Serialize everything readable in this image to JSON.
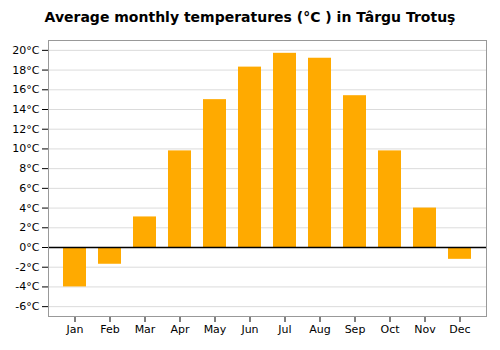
{
  "chart_data": {
    "type": "bar",
    "title": "Average monthly temperatures (°C ) in Târgu Trotuş",
    "categories": [
      "Jan",
      "Feb",
      "Mar",
      "Apr",
      "May",
      "Jun",
      "Jul",
      "Aug",
      "Sep",
      "Oct",
      "Nov",
      "Dec"
    ],
    "values": [
      -4.0,
      -1.7,
      3.1,
      9.8,
      15.0,
      18.3,
      19.7,
      19.2,
      15.4,
      9.8,
      4.0,
      -1.2
    ],
    "color": "#FFAA00",
    "ylim": [
      -7,
      21
    ],
    "yticks": [
      {
        "value": -6,
        "label": "-6°C"
      },
      {
        "value": -4,
        "label": "-4°C"
      },
      {
        "value": -2,
        "label": "-2°C"
      },
      {
        "value": 0,
        "label": "0°C"
      },
      {
        "value": 2,
        "label": "2°C"
      },
      {
        "value": 4,
        "label": "4°C"
      },
      {
        "value": 6,
        "label": "6°C"
      },
      {
        "value": 8,
        "label": "8°C"
      },
      {
        "value": 10,
        "label": "10°C"
      },
      {
        "value": 12,
        "label": "12°C"
      },
      {
        "value": 14,
        "label": "14°C"
      },
      {
        "value": 16,
        "label": "16°C"
      },
      {
        "value": 18,
        "label": "18°C"
      },
      {
        "value": 20,
        "label": "20°C"
      }
    ],
    "grid": true
  }
}
